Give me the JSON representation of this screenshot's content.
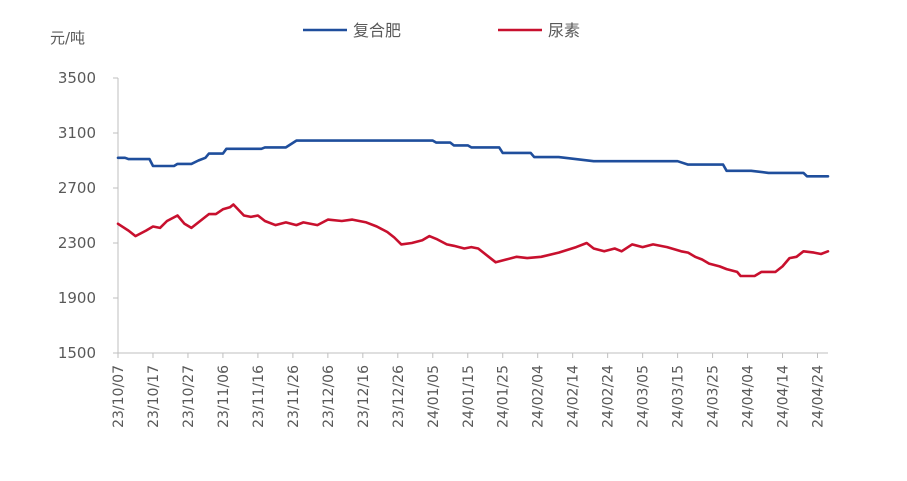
{
  "chart_data": {
    "type": "line",
    "unit_label": "元/吨",
    "ylim": [
      1500,
      3500
    ],
    "y_ticks": [
      "1500",
      "1900",
      "2300",
      "2700",
      "3100",
      "3500"
    ],
    "x_ticks": [
      "23/10/07",
      "23/10/17",
      "23/10/27",
      "23/11/06",
      "23/11/16",
      "23/11/26",
      "23/12/06",
      "23/12/16",
      "23/12/26",
      "24/01/05",
      "24/01/15",
      "24/01/25",
      "24/02/04",
      "24/02/14",
      "24/02/24",
      "24/03/05",
      "24/03/15",
      "24/03/25",
      "24/04/04",
      "24/04/14",
      "24/04/24"
    ],
    "x_range": [
      "2023-10-07",
      "2024-04-27"
    ],
    "legend_position": "top",
    "grid": false,
    "series": [
      {
        "name": "复合肥",
        "color": "#1F4E9C",
        "points": [
          [
            "2023-10-07",
            2920
          ],
          [
            "2023-10-09",
            2920
          ],
          [
            "2023-10-10",
            2910
          ],
          [
            "2023-10-16",
            2910
          ],
          [
            "2023-10-17",
            2860
          ],
          [
            "2023-10-23",
            2860
          ],
          [
            "2023-10-24",
            2875
          ],
          [
            "2023-10-28",
            2875
          ],
          [
            "2023-10-30",
            2900
          ],
          [
            "2023-11-01",
            2920
          ],
          [
            "2023-11-02",
            2950
          ],
          [
            "2023-11-06",
            2950
          ],
          [
            "2023-11-07",
            2985
          ],
          [
            "2023-11-17",
            2985
          ],
          [
            "2023-11-18",
            2995
          ],
          [
            "2023-11-24",
            2995
          ],
          [
            "2023-11-27",
            3045
          ],
          [
            "2024-01-05",
            3045
          ],
          [
            "2024-01-06",
            3030
          ],
          [
            "2024-01-10",
            3030
          ],
          [
            "2024-01-11",
            3010
          ],
          [
            "2024-01-15",
            3010
          ],
          [
            "2024-01-16",
            2995
          ],
          [
            "2024-01-24",
            2995
          ],
          [
            "2024-01-25",
            2955
          ],
          [
            "2024-02-02",
            2955
          ],
          [
            "2024-02-03",
            2925
          ],
          [
            "2024-02-10",
            2925
          ],
          [
            "2024-02-20",
            2895
          ],
          [
            "2024-03-15",
            2895
          ],
          [
            "2024-03-18",
            2870
          ],
          [
            "2024-03-28",
            2870
          ],
          [
            "2024-03-29",
            2825
          ],
          [
            "2024-04-05",
            2825
          ],
          [
            "2024-04-10",
            2810
          ],
          [
            "2024-04-20",
            2810
          ],
          [
            "2024-04-21",
            2785
          ],
          [
            "2024-04-27",
            2785
          ]
        ]
      },
      {
        "name": "尿素",
        "color": "#C8102E",
        "points": [
          [
            "2023-10-07",
            2440
          ],
          [
            "2023-10-10",
            2390
          ],
          [
            "2023-10-12",
            2350
          ],
          [
            "2023-10-15",
            2390
          ],
          [
            "2023-10-17",
            2420
          ],
          [
            "2023-10-19",
            2410
          ],
          [
            "2023-10-21",
            2460
          ],
          [
            "2023-10-24",
            2500
          ],
          [
            "2023-10-26",
            2440
          ],
          [
            "2023-10-28",
            2410
          ],
          [
            "2023-10-31",
            2470
          ],
          [
            "2023-11-02",
            2510
          ],
          [
            "2023-11-04",
            2510
          ],
          [
            "2023-11-06",
            2545
          ],
          [
            "2023-11-08",
            2560
          ],
          [
            "2023-11-09",
            2580
          ],
          [
            "2023-11-12",
            2500
          ],
          [
            "2023-11-14",
            2490
          ],
          [
            "2023-11-16",
            2500
          ],
          [
            "2023-11-18",
            2460
          ],
          [
            "2023-11-21",
            2430
          ],
          [
            "2023-11-24",
            2450
          ],
          [
            "2023-11-27",
            2430
          ],
          [
            "2023-11-29",
            2450
          ],
          [
            "2023-12-03",
            2430
          ],
          [
            "2023-12-06",
            2470
          ],
          [
            "2023-12-10",
            2460
          ],
          [
            "2023-12-13",
            2470
          ],
          [
            "2023-12-17",
            2450
          ],
          [
            "2023-12-20",
            2420
          ],
          [
            "2023-12-23",
            2380
          ],
          [
            "2023-12-25",
            2340
          ],
          [
            "2023-12-27",
            2290
          ],
          [
            "2023-12-30",
            2300
          ],
          [
            "2024-01-02",
            2320
          ],
          [
            "2024-01-04",
            2350
          ],
          [
            "2024-01-06",
            2330
          ],
          [
            "2024-01-09",
            2290
          ],
          [
            "2024-01-11",
            2280
          ],
          [
            "2024-01-14",
            2260
          ],
          [
            "2024-01-16",
            2270
          ],
          [
            "2024-01-18",
            2260
          ],
          [
            "2024-01-21",
            2200
          ],
          [
            "2024-01-23",
            2160
          ],
          [
            "2024-01-26",
            2180
          ],
          [
            "2024-01-29",
            2200
          ],
          [
            "2024-02-01",
            2190
          ],
          [
            "2024-02-05",
            2200
          ],
          [
            "2024-02-10",
            2230
          ],
          [
            "2024-02-15",
            2270
          ],
          [
            "2024-02-18",
            2300
          ],
          [
            "2024-02-20",
            2260
          ],
          [
            "2024-02-23",
            2240
          ],
          [
            "2024-02-26",
            2260
          ],
          [
            "2024-02-28",
            2240
          ],
          [
            "2024-03-02",
            2290
          ],
          [
            "2024-03-05",
            2270
          ],
          [
            "2024-03-08",
            2290
          ],
          [
            "2024-03-12",
            2270
          ],
          [
            "2024-03-16",
            2240
          ],
          [
            "2024-03-18",
            2230
          ],
          [
            "2024-03-20",
            2200
          ],
          [
            "2024-03-22",
            2180
          ],
          [
            "2024-03-24",
            2150
          ],
          [
            "2024-03-27",
            2130
          ],
          [
            "2024-03-29",
            2110
          ],
          [
            "2024-04-01",
            2090
          ],
          [
            "2024-04-02",
            2060
          ],
          [
            "2024-04-06",
            2060
          ],
          [
            "2024-04-08",
            2090
          ],
          [
            "2024-04-12",
            2090
          ],
          [
            "2024-04-14",
            2130
          ],
          [
            "2024-04-16",
            2190
          ],
          [
            "2024-04-18",
            2200
          ],
          [
            "2024-04-20",
            2240
          ],
          [
            "2024-04-23",
            2230
          ],
          [
            "2024-04-25",
            2220
          ],
          [
            "2024-04-27",
            2240
          ]
        ]
      }
    ]
  }
}
